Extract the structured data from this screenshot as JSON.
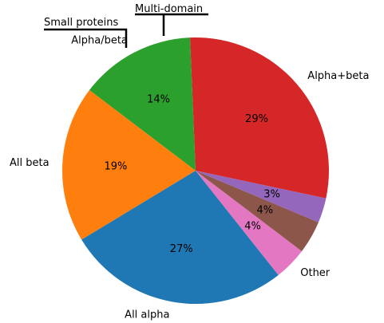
{
  "chart_data": {
    "type": "pie",
    "slices": [
      {
        "label": "Alpha+beta",
        "value": 29,
        "pct_label": "29%",
        "color": "#d62728"
      },
      {
        "label": "Alpha/beta",
        "value": 14,
        "pct_label": "14%",
        "color": "#2ca02c"
      },
      {
        "label": "All beta",
        "value": 19,
        "pct_label": "19%",
        "color": "#ff7f0e"
      },
      {
        "label": "All alpha",
        "value": 27,
        "pct_label": "27%",
        "color": "#1f77b4"
      },
      {
        "label": "Other",
        "value": 4,
        "pct_label": "4%",
        "color": "#e377c2"
      },
      {
        "label": "Small proteins",
        "value": 4,
        "pct_label": "4%",
        "color": "#8c564b"
      },
      {
        "label": "Multi-domain",
        "value": 3,
        "pct_label": "3%",
        "color": "#9467bd"
      }
    ]
  }
}
